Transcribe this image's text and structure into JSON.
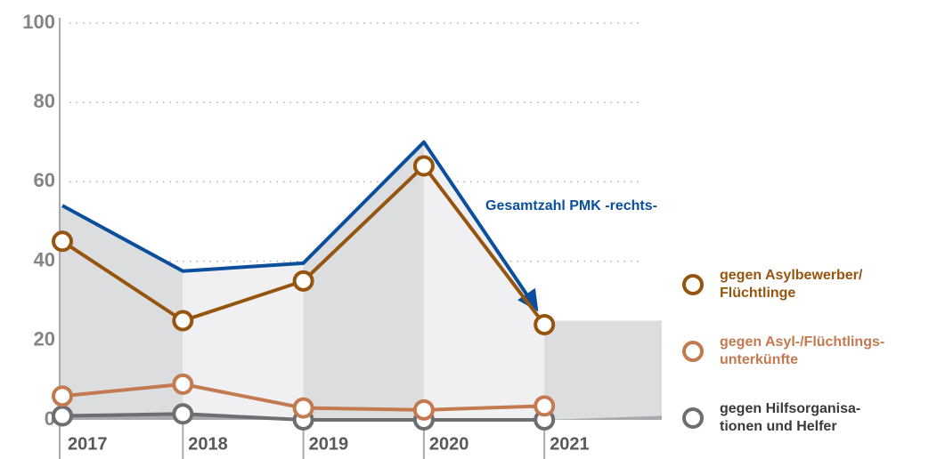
{
  "chart_data": {
    "type": "line",
    "categories": [
      "2017",
      "2018",
      "2019",
      "2020",
      "2021"
    ],
    "series": [
      {
        "name": "Gesamtzahl PMK -rechts-",
        "color": "#0b4f9c",
        "values": [
          54,
          37.5,
          39.5,
          70,
          25
        ]
      },
      {
        "name": "gegen Asylbewerber/ Flüchtlinge",
        "color": "#96550f",
        "values": [
          45,
          25,
          35,
          64,
          24
        ]
      },
      {
        "name": "gegen Asyl-/Flüchtlings-unterkünfte",
        "color": "#c47a50",
        "values": [
          6,
          9,
          3,
          2.5,
          3.5
        ]
      },
      {
        "name": "gegen Hilfsorganisa-tionen und Helfer",
        "color": "#6d6e71",
        "values": [
          1,
          1.5,
          0,
          0,
          0
        ]
      }
    ],
    "legend_lines": [
      [
        "gegen Asylbewerber/",
        "Flüchtlinge"
      ],
      [
        "gegen Asyl-/Flüchtlings-",
        "unterkünfte"
      ],
      [
        "gegen Hilfsorganisa-",
        "tionen und Helfer"
      ]
    ],
    "ylim": [
      0,
      100
    ],
    "yticks": [
      0,
      20,
      40,
      60,
      80,
      100
    ],
    "grid": true
  }
}
